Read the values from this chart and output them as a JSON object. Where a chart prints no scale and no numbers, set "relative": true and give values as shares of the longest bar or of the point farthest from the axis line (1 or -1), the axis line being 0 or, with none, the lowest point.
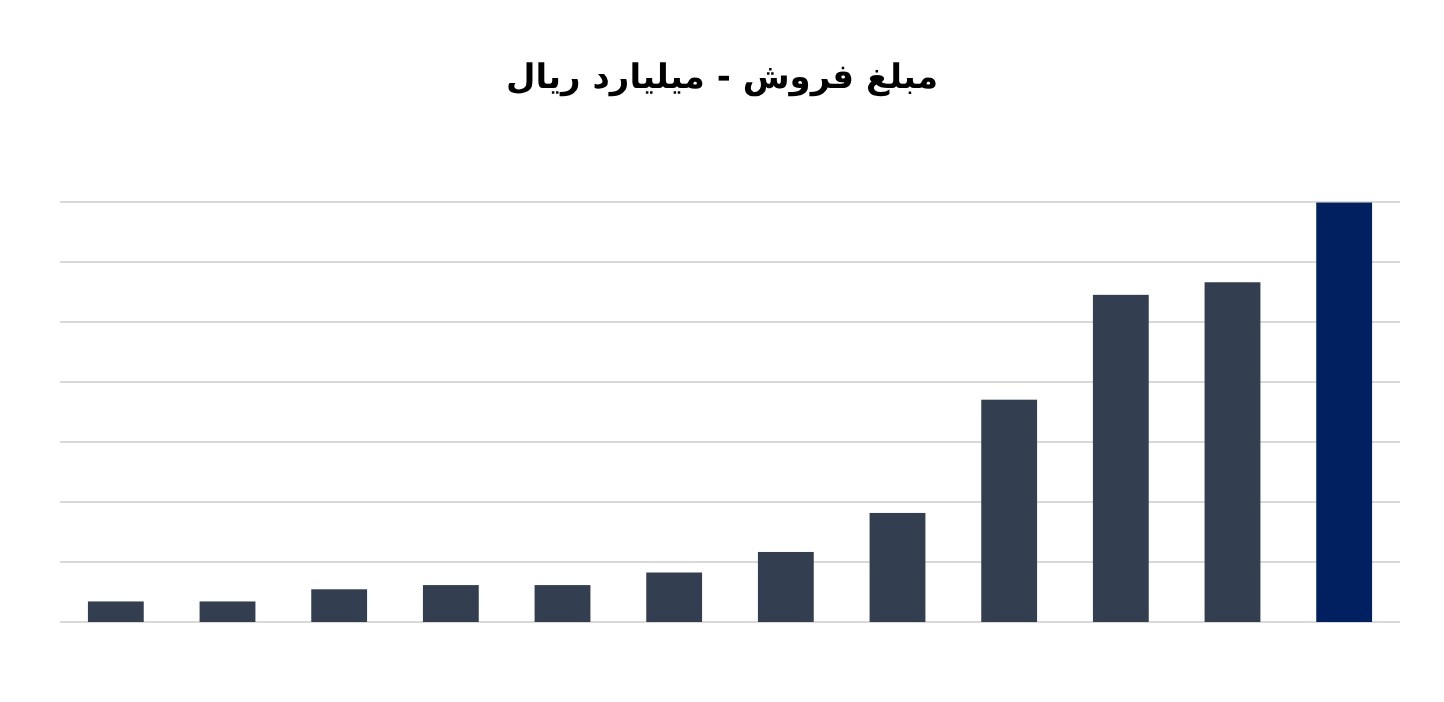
{
  "chart_data": {
    "type": "bar",
    "title": "مبلغ فروش - میلیارد ریال",
    "relative": true,
    "grid": true,
    "categories": [
      null,
      null,
      null,
      null,
      null,
      null,
      null,
      null,
      null,
      null,
      null,
      null
    ],
    "values": [
      0.049,
      0.049,
      0.078,
      0.088,
      0.088,
      0.118,
      0.167,
      0.26,
      0.53,
      0.78,
      0.81,
      1
    ],
    "colors": [
      "#333f50",
      "#333f50",
      "#333f50",
      "#333f50",
      "#333f50",
      "#333f50",
      "#333f50",
      "#333f50",
      "#333f50",
      "#333f50",
      "#333f50",
      "#002060"
    ]
  }
}
